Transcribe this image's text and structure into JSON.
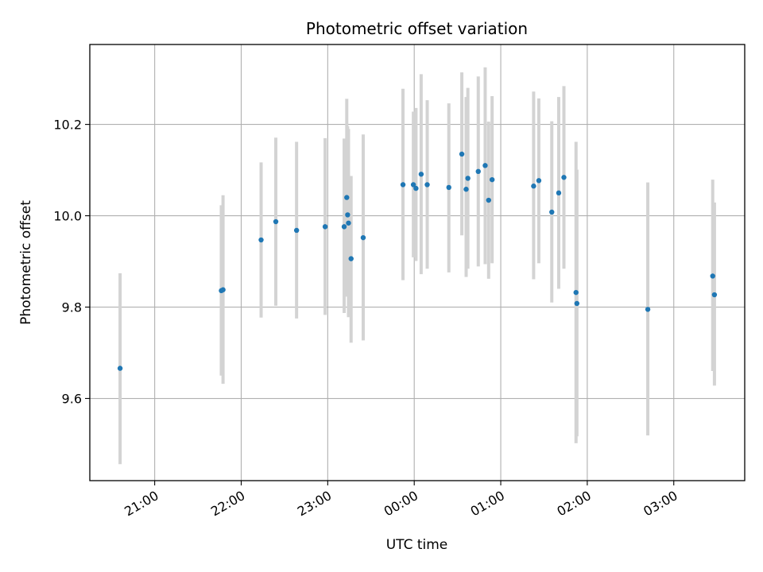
{
  "chart_data": {
    "type": "scatter",
    "title": "Photometric offset variation",
    "xlabel": "UTC time",
    "ylabel": "Photometric offset",
    "x_unit": "hours (UTC, relative to 00:00 of the later date)",
    "xlim": [
      -3.75,
      3.82
    ],
    "ylim": [
      9.42,
      10.375
    ],
    "grid": true,
    "marker_color": "#1f77b4",
    "errorbar_color": "#d3d3d3",
    "x_ticks": [
      {
        "value": -3,
        "label": "21:00"
      },
      {
        "value": -2,
        "label": "22:00"
      },
      {
        "value": -1,
        "label": "23:00"
      },
      {
        "value": 0,
        "label": "00:00"
      },
      {
        "value": 1,
        "label": "01:00"
      },
      {
        "value": 2,
        "label": "02:00"
      },
      {
        "value": 3,
        "label": "03:00"
      }
    ],
    "y_ticks": [
      {
        "value": 9.6,
        "label": "9.6"
      },
      {
        "value": 9.8,
        "label": "9.8"
      },
      {
        "value": 10.0,
        "label": "10.0"
      },
      {
        "value": 10.2,
        "label": "10.2"
      }
    ],
    "points": [
      {
        "x": -3.4,
        "y": 9.666,
        "ylo": 9.456,
        "yhi": 9.874
      },
      {
        "x": -2.23,
        "y": 9.836,
        "ylo": 9.65,
        "yhi": 10.023
      },
      {
        "x": -2.21,
        "y": 9.838,
        "ylo": 9.632,
        "yhi": 10.045
      },
      {
        "x": -1.77,
        "y": 9.947,
        "ylo": 9.777,
        "yhi": 10.117
      },
      {
        "x": -1.6,
        "y": 9.987,
        "ylo": 9.803,
        "yhi": 10.171
      },
      {
        "x": -1.36,
        "y": 9.968,
        "ylo": 9.775,
        "yhi": 10.162
      },
      {
        "x": -1.03,
        "y": 9.976,
        "ylo": 9.783,
        "yhi": 10.17
      },
      {
        "x": -0.81,
        "y": 9.976,
        "ylo": 9.787,
        "yhi": 10.169
      },
      {
        "x": -0.78,
        "y": 10.04,
        "ylo": 9.823,
        "yhi": 10.256
      },
      {
        "x": -0.77,
        "y": 10.002,
        "ylo": 9.829,
        "yhi": 10.196
      },
      {
        "x": -0.76,
        "y": 9.984,
        "ylo": 9.778,
        "yhi": 10.19
      },
      {
        "x": -0.73,
        "y": 9.906,
        "ylo": 9.722,
        "yhi": 10.087
      },
      {
        "x": -0.59,
        "y": 9.952,
        "ylo": 9.727,
        "yhi": 10.178
      },
      {
        "x": -0.13,
        "y": 10.068,
        "ylo": 9.859,
        "yhi": 10.278
      },
      {
        "x": -0.01,
        "y": 10.068,
        "ylo": 9.909,
        "yhi": 10.228
      },
      {
        "x": 0.02,
        "y": 10.06,
        "ylo": 9.901,
        "yhi": 10.236
      },
      {
        "x": 0.08,
        "y": 10.091,
        "ylo": 9.872,
        "yhi": 10.31
      },
      {
        "x": 0.15,
        "y": 10.068,
        "ylo": 9.884,
        "yhi": 10.253
      },
      {
        "x": 0.4,
        "y": 10.062,
        "ylo": 9.876,
        "yhi": 10.246
      },
      {
        "x": 0.55,
        "y": 10.135,
        "ylo": 9.957,
        "yhi": 10.314
      },
      {
        "x": 0.6,
        "y": 10.058,
        "ylo": 9.866,
        "yhi": 10.26
      },
      {
        "x": 0.62,
        "y": 10.082,
        "ylo": 9.884,
        "yhi": 10.28
      },
      {
        "x": 0.74,
        "y": 10.097,
        "ylo": 9.889,
        "yhi": 10.305
      },
      {
        "x": 0.82,
        "y": 10.11,
        "ylo": 9.894,
        "yhi": 10.325
      },
      {
        "x": 0.86,
        "y": 10.034,
        "ylo": 9.862,
        "yhi": 10.206
      },
      {
        "x": 0.9,
        "y": 10.079,
        "ylo": 9.896,
        "yhi": 10.262
      },
      {
        "x": 1.38,
        "y": 10.065,
        "ylo": 9.861,
        "yhi": 10.272
      },
      {
        "x": 1.44,
        "y": 10.077,
        "ylo": 9.896,
        "yhi": 10.257
      },
      {
        "x": 1.59,
        "y": 10.008,
        "ylo": 9.81,
        "yhi": 10.207
      },
      {
        "x": 1.67,
        "y": 10.05,
        "ylo": 9.84,
        "yhi": 10.26
      },
      {
        "x": 1.73,
        "y": 10.084,
        "ylo": 9.884,
        "yhi": 10.284
      },
      {
        "x": 1.87,
        "y": 9.832,
        "ylo": 9.502,
        "yhi": 10.162
      },
      {
        "x": 1.88,
        "y": 9.808,
        "ylo": 9.517,
        "yhi": 10.101
      },
      {
        "x": 2.7,
        "y": 9.795,
        "ylo": 9.519,
        "yhi": 10.073
      },
      {
        "x": 3.45,
        "y": 9.868,
        "ylo": 9.66,
        "yhi": 10.079
      },
      {
        "x": 3.47,
        "y": 9.827,
        "ylo": 9.628,
        "yhi": 10.029
      }
    ]
  }
}
